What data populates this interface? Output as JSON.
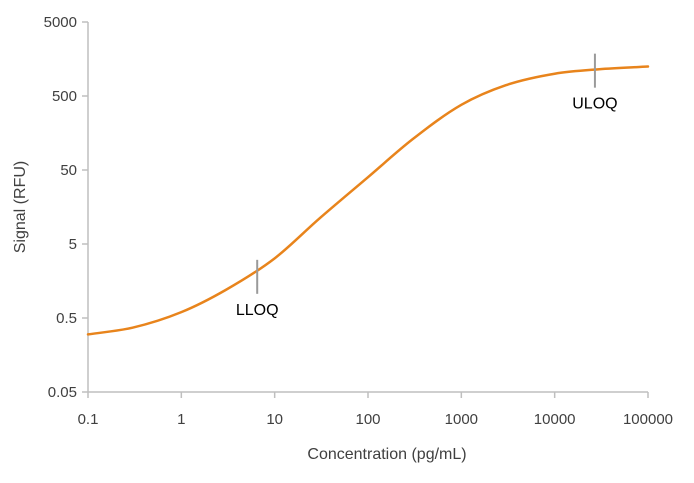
{
  "chart_data": {
    "type": "line",
    "title": "",
    "xlabel": "Concentration (pg/mL)",
    "ylabel": "Signal (RFU)",
    "x_scale": "log",
    "y_scale": "log",
    "xlim": [
      0.1,
      100000
    ],
    "ylim": [
      0.05,
      5000
    ],
    "x_ticks": [
      "0.1",
      "1",
      "10",
      "100",
      "1000",
      "10000",
      "100000"
    ],
    "y_ticks": [
      "0.05",
      "0.5",
      "5",
      "50",
      "500",
      "5000"
    ],
    "grid": false,
    "legend": "none",
    "series": [
      {
        "color": "#E8841C",
        "x": [
          0.1,
          0.3,
          1,
          3,
          10,
          30,
          100,
          300,
          1000,
          3000,
          10000,
          30000,
          100000
        ],
        "y": [
          0.3,
          0.37,
          0.6,
          1.2,
          3.2,
          11,
          40,
          130,
          380,
          700,
          1000,
          1150,
          1250
        ]
      }
    ],
    "annotations": [
      {
        "text": "LLOQ",
        "x": 6.5,
        "y": 1.8
      },
      {
        "text": "ULOQ",
        "x": 27000,
        "y": 1100
      }
    ]
  },
  "colors": {
    "line": "#E8841C",
    "axis": "#bfbfbf",
    "marker": "#9a9a9a",
    "text": "#404040"
  }
}
